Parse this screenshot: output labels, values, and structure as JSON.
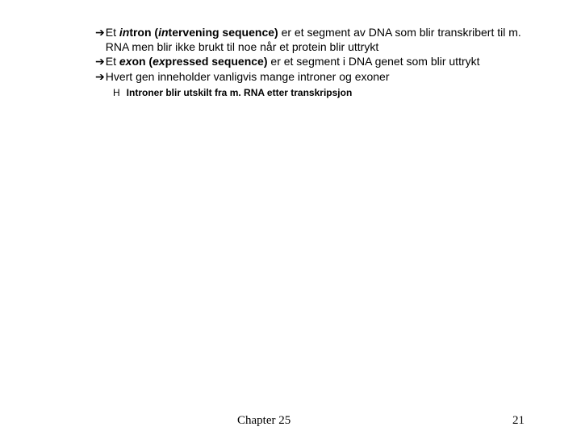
{
  "bullets": {
    "b1": {
      "prefix": "Et ",
      "term_html": "in",
      "term_rest": "tron (",
      "paren_italic": "in",
      "paren_rest": "tervening sequence)",
      "tail": " er et segment av DNA som blir transkribert til m. RNA men blir ikke brukt til noe når et protein blir uttrykt"
    },
    "b2": {
      "prefix": "Et ",
      "term_html": "ex",
      "term_rest": "on (",
      "paren_italic": "ex",
      "paren_rest": "pressed sequence)",
      "tail": " er et segment i DNA genet som blir uttrykt"
    },
    "b3": {
      "text": "Hvert gen inneholder vanligvis mange introner og exoner"
    }
  },
  "sub": {
    "text": "Introner blir utskilt fra m. RNA etter transkripsjon"
  },
  "footer": {
    "chapter": "Chapter 25",
    "page": "21"
  },
  "colors": {
    "text": "#000000",
    "background": "#ffffff"
  },
  "fontsize": {
    "bullet": 14,
    "sub": 12,
    "footer": 15
  }
}
